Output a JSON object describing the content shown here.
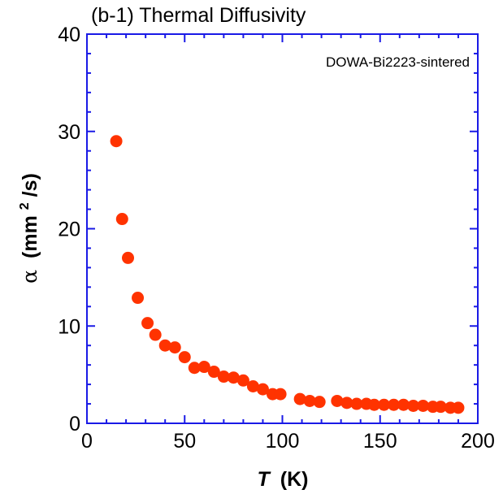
{
  "chart_data": {
    "type": "scatter",
    "title": "(b-1) Thermal Diffusivity",
    "annotation": "DOWA-Bi2223-sintered",
    "xlabel": {
      "italic_symbol": "T",
      "unit": "(K)"
    },
    "ylabel": {
      "symbol": "α",
      "open": "(mm",
      "sup": "2",
      "close": "/s)"
    },
    "xlim": [
      0,
      200
    ],
    "ylim": [
      0,
      40
    ],
    "x_major_ticks": [
      0,
      50,
      100,
      150,
      200
    ],
    "y_major_ticks": [
      0,
      10,
      20,
      30,
      40
    ],
    "x_tick_labels": [
      "0",
      "50",
      "100",
      "150",
      "200"
    ],
    "y_tick_labels": [
      "0",
      "10",
      "20",
      "30",
      "40"
    ],
    "x_minor_step": 10,
    "y_minor_step": 2,
    "grid": false,
    "marker_color": "#ff3300",
    "axis_color": "#1a1ae6",
    "x": [
      15,
      18,
      21,
      26,
      31,
      35,
      40,
      45,
      50,
      55,
      60,
      65,
      70,
      75,
      80,
      85,
      90,
      95,
      99,
      109,
      114,
      119,
      128,
      133,
      138,
      143,
      147,
      152,
      157,
      162,
      167,
      172,
      177,
      181,
      186,
      190
    ],
    "y": [
      29,
      21,
      17,
      12.9,
      10.3,
      9.1,
      8.0,
      7.8,
      6.8,
      5.7,
      5.8,
      5.3,
      4.8,
      4.7,
      4.4,
      3.8,
      3.5,
      3.0,
      3.0,
      2.5,
      2.3,
      2.2,
      2.3,
      2.1,
      2.0,
      2.0,
      1.9,
      1.9,
      1.9,
      1.9,
      1.8,
      1.8,
      1.7,
      1.7,
      1.6,
      1.6
    ]
  }
}
